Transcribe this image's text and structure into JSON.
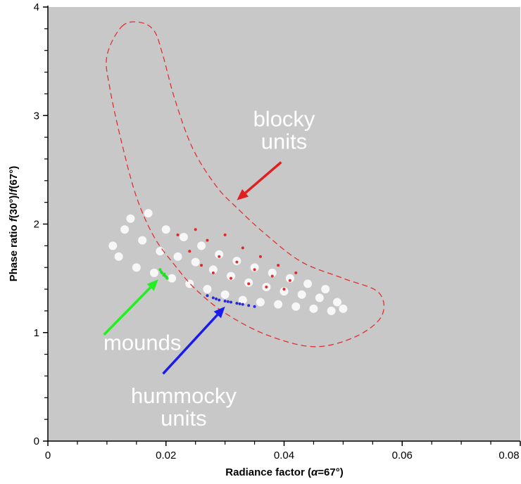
{
  "chart_data": {
    "type": "scatter",
    "title": "",
    "xlabel_main": "Radiance factor (",
    "xlabel_alpha": "α",
    "xlabel_tail": "=67°)",
    "ylabel_main": "Phase ratio ",
    "ylabel_f1": "f",
    "ylabel_mid": "(30°)/",
    "ylabel_f2": "f",
    "ylabel_tail": "(67°)",
    "xlim": [
      0,
      0.08
    ],
    "ylim": [
      0,
      4
    ],
    "x_ticks": [
      "0",
      "0.02",
      "0.04",
      "0.06",
      "0.08"
    ],
    "y_ticks": [
      "0",
      "1",
      "2",
      "3",
      "4"
    ],
    "grid": false,
    "background_color": "#c8c8c8",
    "series": [
      {
        "color": "#ffffff",
        "region": "main cloud",
        "points": [
          [
            0.011,
            1.8
          ],
          [
            0.012,
            1.7
          ],
          [
            0.013,
            1.95
          ],
          [
            0.014,
            2.05
          ],
          [
            0.015,
            1.6
          ],
          [
            0.016,
            1.85
          ],
          [
            0.017,
            2.1
          ],
          [
            0.018,
            1.55
          ],
          [
            0.019,
            1.75
          ],
          [
            0.02,
            1.95
          ],
          [
            0.021,
            1.5
          ],
          [
            0.022,
            1.7
          ],
          [
            0.023,
            1.88
          ],
          [
            0.024,
            1.45
          ],
          [
            0.025,
            1.65
          ],
          [
            0.026,
            1.8
          ],
          [
            0.027,
            1.4
          ],
          [
            0.028,
            1.58
          ],
          [
            0.029,
            1.72
          ],
          [
            0.03,
            1.35
          ],
          [
            0.031,
            1.52
          ],
          [
            0.032,
            1.66
          ],
          [
            0.033,
            1.3
          ],
          [
            0.034,
            1.46
          ],
          [
            0.035,
            1.6
          ],
          [
            0.036,
            1.28
          ],
          [
            0.037,
            1.42
          ],
          [
            0.038,
            1.55
          ],
          [
            0.039,
            1.26
          ],
          [
            0.04,
            1.38
          ],
          [
            0.041,
            1.5
          ],
          [
            0.042,
            1.24
          ],
          [
            0.043,
            1.35
          ],
          [
            0.044,
            1.45
          ],
          [
            0.045,
            1.22
          ],
          [
            0.046,
            1.32
          ],
          [
            0.047,
            1.4
          ],
          [
            0.048,
            1.2
          ],
          [
            0.049,
            1.28
          ],
          [
            0.05,
            1.22
          ]
        ]
      },
      {
        "color": "#e02020",
        "region": "blocky units",
        "points": [
          [
            0.022,
            1.9
          ],
          [
            0.024,
            1.75
          ],
          [
            0.025,
            1.95
          ],
          [
            0.026,
            1.62
          ],
          [
            0.027,
            1.85
          ],
          [
            0.028,
            1.55
          ],
          [
            0.029,
            1.7
          ],
          [
            0.03,
            1.9
          ],
          [
            0.031,
            1.5
          ],
          [
            0.032,
            1.65
          ],
          [
            0.033,
            1.78
          ],
          [
            0.034,
            1.45
          ],
          [
            0.035,
            1.58
          ],
          [
            0.036,
            1.7
          ],
          [
            0.037,
            1.42
          ],
          [
            0.038,
            1.52
          ],
          [
            0.039,
            1.62
          ],
          [
            0.04,
            1.4
          ],
          [
            0.041,
            1.48
          ],
          [
            0.042,
            1.55
          ]
        ]
      },
      {
        "color": "#22dd22",
        "region": "mounds",
        "points": [
          [
            0.019,
            1.58
          ],
          [
            0.0193,
            1.55
          ],
          [
            0.0196,
            1.53
          ],
          [
            0.0199,
            1.52
          ],
          [
            0.0202,
            1.5
          ],
          [
            0.0192,
            1.56
          ],
          [
            0.0197,
            1.54
          ],
          [
            0.0201,
            1.51
          ]
        ]
      },
      {
        "color": "#2222dd",
        "region": "hummocky units",
        "points": [
          [
            0.027,
            1.34
          ],
          [
            0.028,
            1.32
          ],
          [
            0.029,
            1.3
          ],
          [
            0.03,
            1.29
          ],
          [
            0.031,
            1.28
          ],
          [
            0.032,
            1.27
          ],
          [
            0.033,
            1.26
          ],
          [
            0.034,
            1.25
          ],
          [
            0.035,
            1.24
          ],
          [
            0.0285,
            1.31
          ],
          [
            0.0305,
            1.285
          ],
          [
            0.0325,
            1.265
          ]
        ]
      }
    ],
    "outline": {
      "color": "#e03030",
      "style": "dashed",
      "points": [
        [
          0.0125,
          3.82
        ],
        [
          0.0155,
          3.86
        ],
        [
          0.018,
          3.78
        ],
        [
          0.0195,
          3.55
        ],
        [
          0.0215,
          3.15
        ],
        [
          0.0245,
          2.7
        ],
        [
          0.0285,
          2.35
        ],
        [
          0.032,
          2.15
        ],
        [
          0.037,
          1.9
        ],
        [
          0.043,
          1.65
        ],
        [
          0.05,
          1.5
        ],
        [
          0.056,
          1.37
        ],
        [
          0.0565,
          1.15
        ],
        [
          0.052,
          0.96
        ],
        [
          0.045,
          0.87
        ],
        [
          0.037,
          0.98
        ],
        [
          0.03,
          1.18
        ],
        [
          0.025,
          1.4
        ],
        [
          0.0215,
          1.62
        ],
        [
          0.018,
          1.88
        ],
        [
          0.015,
          2.25
        ],
        [
          0.0125,
          2.75
        ],
        [
          0.0105,
          3.25
        ],
        [
          0.01,
          3.55
        ]
      ]
    },
    "annotations": [
      {
        "lines": [
          "blocky",
          "units"
        ],
        "color": "#ffffff",
        "text_at": [
          0.04,
          2.9
        ],
        "arrow_color": "#e02020",
        "arrow_from": [
          0.0395,
          2.57
        ],
        "arrow_to": [
          0.032,
          2.22
        ]
      },
      {
        "lines": [
          "mounds"
        ],
        "color": "#ffffff",
        "text_at": [
          0.016,
          0.84
        ],
        "arrow_color": "#22ee22",
        "arrow_from": [
          0.0095,
          0.98
        ],
        "arrow_to": [
          0.0187,
          1.49
        ]
      },
      {
        "lines": [
          "hummocky",
          "units"
        ],
        "color": "#ffffff",
        "text_at": [
          0.023,
          0.35
        ],
        "arrow_color": "#1a1aee",
        "arrow_from": [
          0.0195,
          0.62
        ],
        "arrow_to": [
          0.03,
          1.24
        ]
      }
    ]
  }
}
